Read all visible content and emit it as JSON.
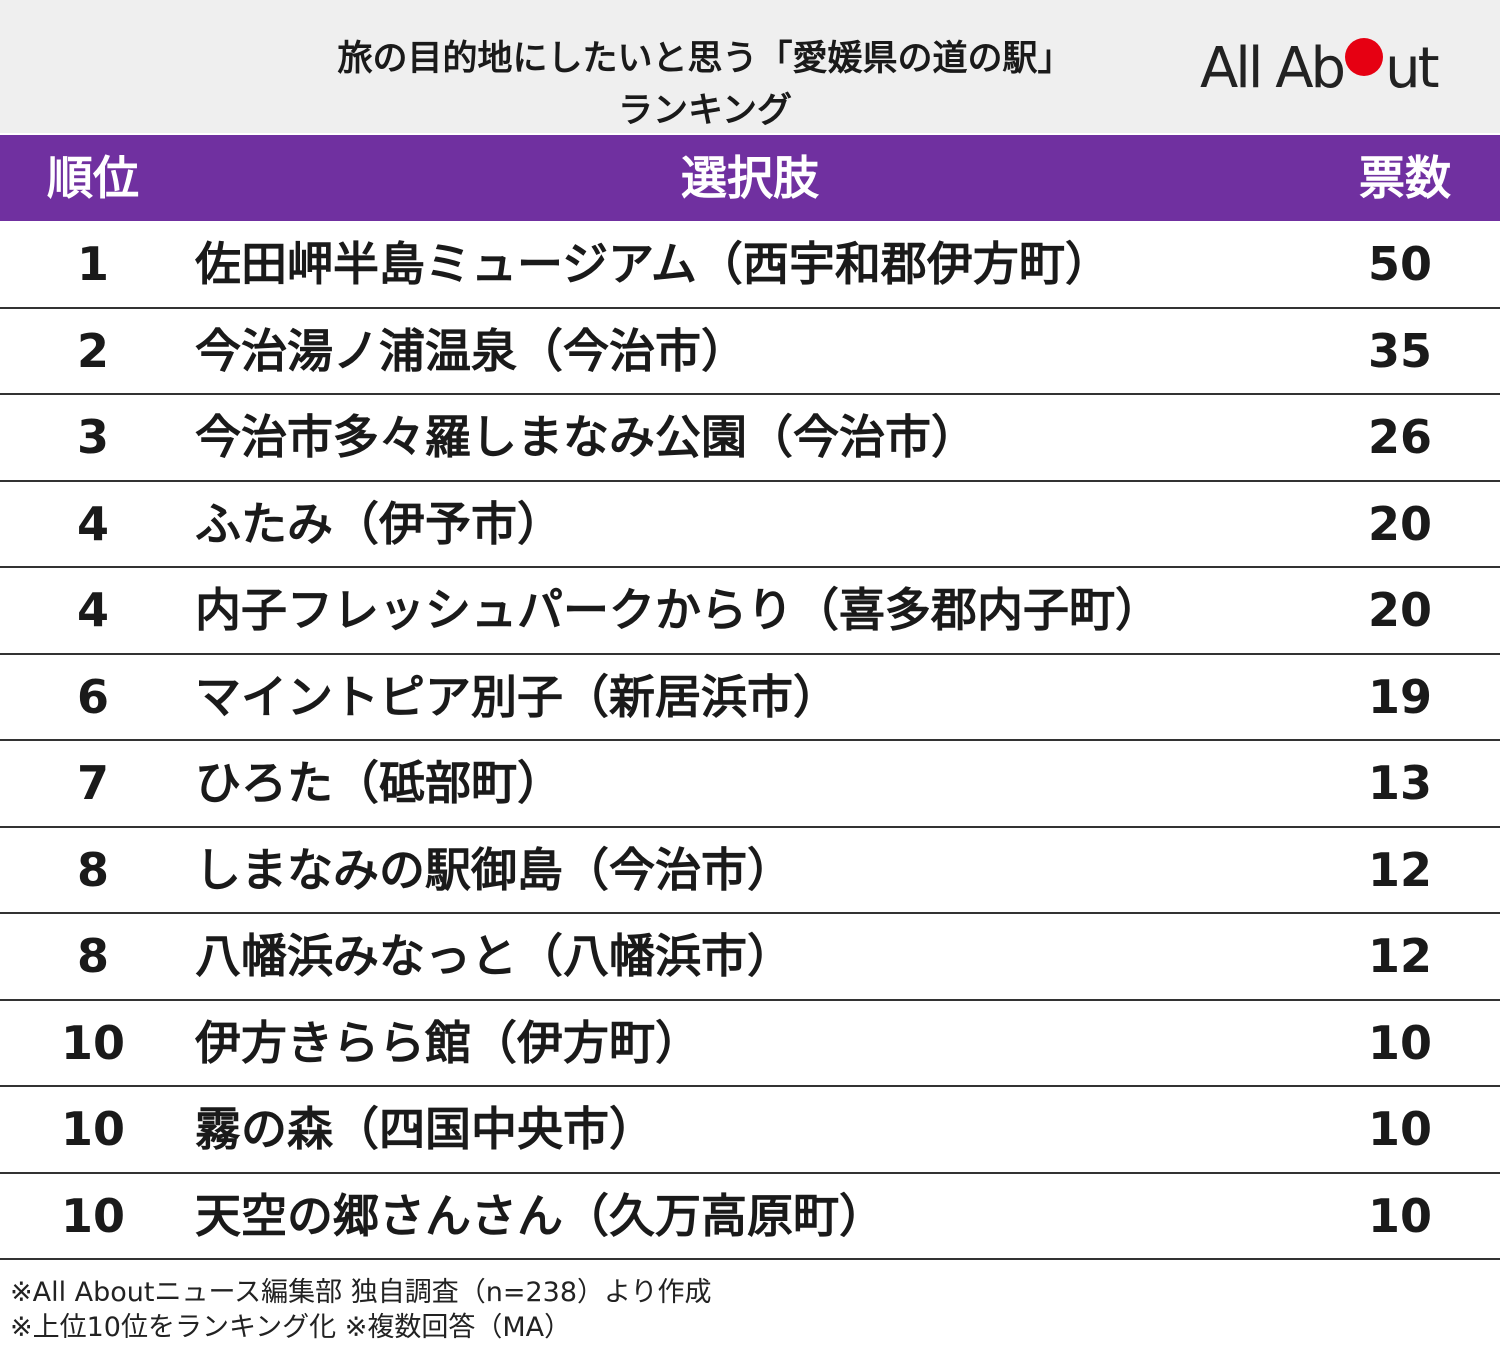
{
  "header": {
    "title_line1": "旅の目的地にしたいと思う「愛媛県の道の駅」",
    "title_line2": "ランキング",
    "logo": "All About"
  },
  "table": {
    "columns": [
      "順位",
      "選択肢",
      "票数"
    ],
    "rows": [
      {
        "rank": 1,
        "name": "佐田岬半島ミュージアム（西宇和郡伊方町）",
        "votes": 50
      },
      {
        "rank": 2,
        "name": "今治湯ノ浦温泉（今治市）",
        "votes": 35
      },
      {
        "rank": 3,
        "name": "今治市多々羅しまなみ公園（今治市）",
        "votes": 26
      },
      {
        "rank": 4,
        "name": "ふたみ（伊予市）",
        "votes": 20
      },
      {
        "rank": 4,
        "name": "内子フレッシュパークからり（喜多郡内子町）",
        "votes": 20
      },
      {
        "rank": 6,
        "name": "マイントピア別子（新居浜市）",
        "votes": 19
      },
      {
        "rank": 7,
        "name": "ひろた（砥部町）",
        "votes": 13
      },
      {
        "rank": 8,
        "name": "しまなみの駅御島（今治市）",
        "votes": 12
      },
      {
        "rank": 8,
        "name": "八幡浜みなっと（八幡浜市）",
        "votes": 12
      },
      {
        "rank": 10,
        "name": "伊方きらら館（伊方町）",
        "votes": 10
      },
      {
        "rank": 10,
        "name": "霧の森（四国中央市）",
        "votes": 10
      },
      {
        "rank": 10,
        "name": "天空の郷さんさん（久万高原町）",
        "votes": 10
      }
    ]
  },
  "footnotes": [
    "※All Aboutニュース編集部 独自調査（n=238）より作成",
    "※上位10位をランキング化 ※複数回答（MA）"
  ]
}
